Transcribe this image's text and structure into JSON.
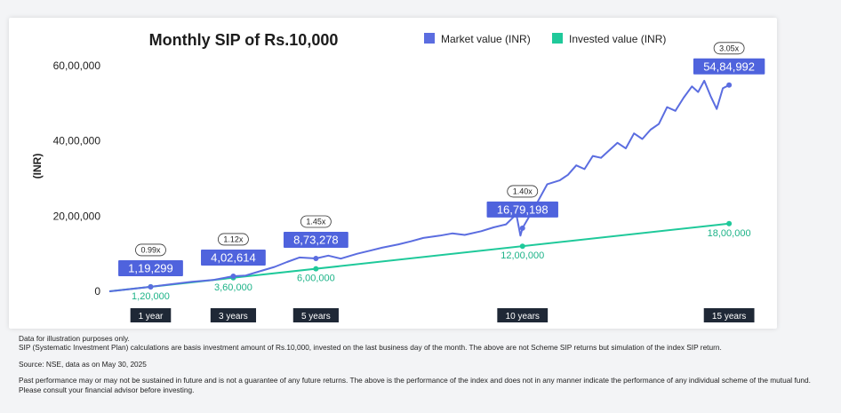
{
  "chart_data": {
    "type": "line",
    "title": "Monthly SIP of Rs.10,000",
    "ylabel": "(INR)",
    "ylim": [
      0,
      6000000
    ],
    "yticks": [
      {
        "value": 0,
        "label": "0"
      },
      {
        "value": 2000000,
        "label": "20,00,000"
      },
      {
        "value": 4000000,
        "label": "40,00,000"
      },
      {
        "value": 6000000,
        "label": "60,00,000"
      }
    ],
    "xlim": [
      0,
      15.6
    ],
    "xmarkers": [
      {
        "x": 1,
        "label": "1 year"
      },
      {
        "x": 3,
        "label": "3 years"
      },
      {
        "x": 5,
        "label": "5 years"
      },
      {
        "x": 10,
        "label": "10 years"
      },
      {
        "x": 15,
        "label": "15 years"
      }
    ],
    "grid": false,
    "legend_position": "top-right",
    "series": [
      {
        "name": "Market value (INR)",
        "color": "#5b6de0",
        "points": [
          [
            0,
            0
          ],
          [
            0.5,
            58000
          ],
          [
            1,
            119299
          ],
          [
            1.5,
            190000
          ],
          [
            2,
            255000
          ],
          [
            2.5,
            300000
          ],
          [
            3,
            402614
          ],
          [
            3.3,
            420000
          ],
          [
            3.6,
            520000
          ],
          [
            4,
            650000
          ],
          [
            4.3,
            780000
          ],
          [
            4.6,
            900000
          ],
          [
            5,
            873278
          ],
          [
            5.3,
            950000
          ],
          [
            5.6,
            870000
          ],
          [
            6,
            1000000
          ],
          [
            6.3,
            1080000
          ],
          [
            6.6,
            1160000
          ],
          [
            7,
            1250000
          ],
          [
            7.3,
            1330000
          ],
          [
            7.6,
            1420000
          ],
          [
            8,
            1480000
          ],
          [
            8.3,
            1540000
          ],
          [
            8.6,
            1500000
          ],
          [
            9,
            1600000
          ],
          [
            9.3,
            1700000
          ],
          [
            9.6,
            1780000
          ],
          [
            9.85,
            2050000
          ],
          [
            9.95,
            1480000
          ],
          [
            10,
            1679198
          ],
          [
            10.3,
            2250000
          ],
          [
            10.6,
            2850000
          ],
          [
            10.9,
            2950000
          ],
          [
            11.1,
            3100000
          ],
          [
            11.3,
            3350000
          ],
          [
            11.5,
            3250000
          ],
          [
            11.7,
            3600000
          ],
          [
            11.9,
            3550000
          ],
          [
            12.1,
            3750000
          ],
          [
            12.3,
            3950000
          ],
          [
            12.5,
            3800000
          ],
          [
            12.7,
            4200000
          ],
          [
            12.9,
            4050000
          ],
          [
            13.1,
            4300000
          ],
          [
            13.3,
            4450000
          ],
          [
            13.5,
            4900000
          ],
          [
            13.7,
            4800000
          ],
          [
            13.9,
            5150000
          ],
          [
            14.1,
            5450000
          ],
          [
            14.25,
            5300000
          ],
          [
            14.4,
            5600000
          ],
          [
            14.55,
            5200000
          ],
          [
            14.7,
            4850000
          ],
          [
            14.85,
            5400000
          ],
          [
            15,
            5484992
          ]
        ]
      },
      {
        "name": "Invested value (INR)",
        "color": "#1fc99a",
        "points": [
          [
            0,
            0
          ],
          [
            15,
            1800000
          ]
        ]
      }
    ],
    "market_labels": [
      {
        "x": 1,
        "y": 119299,
        "label": "1,19,299",
        "ratio": "0.99x"
      },
      {
        "x": 3,
        "y": 402614,
        "label": "4,02,614",
        "ratio": "1.12x"
      },
      {
        "x": 5,
        "y": 873278,
        "label": "8,73,278",
        "ratio": "1.45x"
      },
      {
        "x": 10,
        "y": 1679198,
        "label": "16,79,198",
        "ratio": "1.40x"
      },
      {
        "x": 15,
        "y": 5484992,
        "label": "54,84,992",
        "ratio": "3.05x"
      }
    ],
    "invested_labels": [
      {
        "x": 1,
        "y": 120000,
        "label": "1,20,000"
      },
      {
        "x": 3,
        "y": 360000,
        "label": "3,60,000"
      },
      {
        "x": 5,
        "y": 600000,
        "label": "6,00,000"
      },
      {
        "x": 10,
        "y": 1200000,
        "label": "12,00,000"
      },
      {
        "x": 15,
        "y": 1800000,
        "label": "18,00,000"
      }
    ]
  },
  "notes": {
    "line1": "Data for illustration purposes only.",
    "line2": "SIP (Systematic Investment Plan) calculations are basis investment amount of Rs.10,000, invested on the last business day of the month. The above are not Scheme SIP returns but simulation of the index SIP return.",
    "source": "Source: NSE, data as on May 30, 2025",
    "disclaimer": "Past performance may or may not be sustained in future and is not a guarantee of any future returns. The above is the performance of the index and does not in any manner indicate the performance of any individual scheme of the mutual fund. Please consult your financial advisor before investing."
  }
}
